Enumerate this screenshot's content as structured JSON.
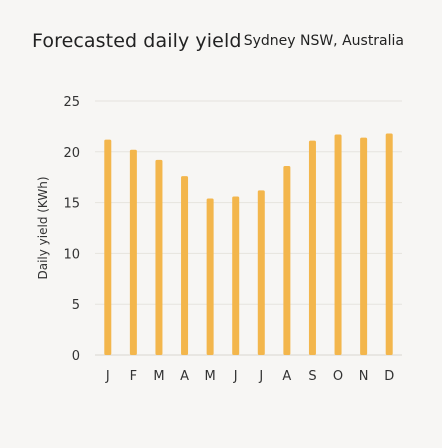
{
  "header": {
    "title": "Forecasted daily yield",
    "location": "Sydney NSW, Australia"
  },
  "colors": {
    "bar": "#f3b64c",
    "grid": "#e6e3de",
    "axis_text": "#333333",
    "background": "#f7f6f4"
  },
  "chart_data": {
    "type": "bar",
    "categories": [
      "J",
      "F",
      "M",
      "A",
      "M",
      "J",
      "J",
      "A",
      "S",
      "O",
      "N",
      "D"
    ],
    "values": [
      21.2,
      20.2,
      19.2,
      17.6,
      15.4,
      15.6,
      16.2,
      18.6,
      21.1,
      21.7,
      21.4,
      21.8
    ],
    "title": "Forecasted daily yield",
    "subtitle": "Sydney NSW, Australia",
    "xlabel": "",
    "ylabel": "Daily yield (KWh)",
    "ylim": [
      0,
      25
    ],
    "yticks": [
      0,
      5,
      10,
      15,
      20,
      25
    ],
    "grid": true,
    "legend": "none"
  }
}
